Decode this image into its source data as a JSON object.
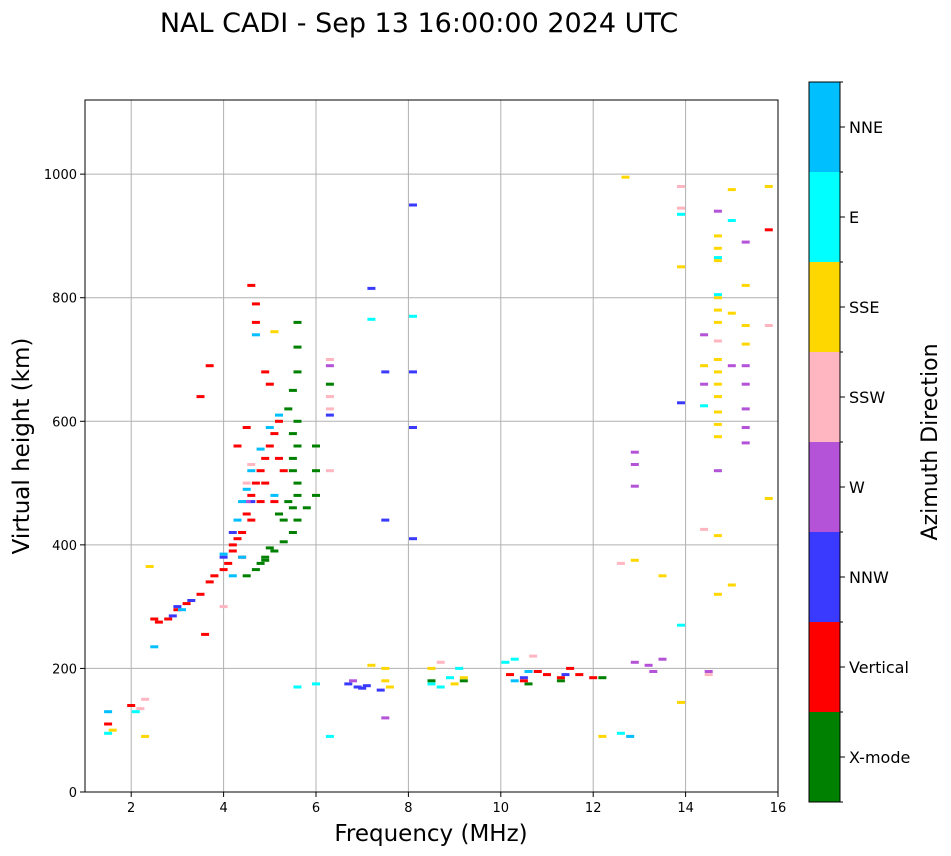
{
  "chart_data": {
    "type": "scatter",
    "title": "NAL CADI - Sep 13 16:00:00 2024 UTC",
    "xlabel": "Frequency (MHz)",
    "ylabel": "Virtual height (km)",
    "xlim": [
      1,
      16
    ],
    "ylim": [
      0,
      1120
    ],
    "xticks": [
      "2",
      "4",
      "6",
      "8",
      "10",
      "12",
      "14",
      "16"
    ],
    "yticks": [
      "0",
      "200",
      "400",
      "600",
      "800",
      "1000"
    ],
    "grid": true,
    "colorbar": {
      "label": "Azimuth Direction",
      "categories": [
        {
          "name": "X-mode",
          "color": "#008000"
        },
        {
          "name": "Vertical",
          "color": "#ff0000"
        },
        {
          "name": "NNW",
          "color": "#3a3aff"
        },
        {
          "name": "W",
          "color": "#b452d8"
        },
        {
          "name": "SSW",
          "color": "#ffb6c1"
        },
        {
          "name": "SSE",
          "color": "#ffd700"
        },
        {
          "name": "E",
          "color": "#00ffff"
        },
        {
          "name": "NNE",
          "color": "#00bfff"
        }
      ]
    },
    "series": [
      {
        "name": "X-mode",
        "points": [
          [
            4.7,
            360
          ],
          [
            4.9,
            375
          ],
          [
            5.1,
            390
          ],
          [
            5.3,
            405
          ],
          [
            5.5,
            420
          ],
          [
            5.6,
            440
          ],
          [
            5.5,
            460
          ],
          [
            5.6,
            480
          ],
          [
            5.6,
            500
          ],
          [
            5.5,
            520
          ],
          [
            5.5,
            540
          ],
          [
            5.6,
            560
          ],
          [
            5.5,
            580
          ],
          [
            5.6,
            600
          ],
          [
            5.5,
            650
          ],
          [
            5.6,
            680
          ],
          [
            5.6,
            720
          ],
          [
            5.6,
            760
          ],
          [
            5.4,
            470
          ],
          [
            5.2,
            450
          ],
          [
            4.9,
            380
          ],
          [
            4.5,
            350
          ],
          [
            6.0,
            560
          ],
          [
            6.0,
            520
          ],
          [
            6.0,
            480
          ],
          [
            5.8,
            460
          ],
          [
            6.3,
            660
          ],
          [
            5.4,
            620
          ],
          [
            5.3,
            440
          ],
          [
            5.0,
            395
          ],
          [
            4.8,
            370
          ],
          [
            8.5,
            180
          ],
          [
            9.2,
            180
          ],
          [
            10.6,
            175
          ],
          [
            11.3,
            180
          ],
          [
            12.2,
            185
          ]
        ]
      },
      {
        "name": "Vertical",
        "points": [
          [
            1.5,
            110
          ],
          [
            2.0,
            140
          ],
          [
            2.5,
            280
          ],
          [
            2.6,
            275
          ],
          [
            2.8,
            280
          ],
          [
            3.0,
            295
          ],
          [
            3.2,
            305
          ],
          [
            3.5,
            320
          ],
          [
            3.7,
            340
          ],
          [
            3.8,
            350
          ],
          [
            4.0,
            360
          ],
          [
            4.1,
            370
          ],
          [
            4.2,
            390
          ],
          [
            4.3,
            410
          ],
          [
            4.4,
            420
          ],
          [
            4.5,
            450
          ],
          [
            4.6,
            480
          ],
          [
            4.7,
            500
          ],
          [
            4.8,
            520
          ],
          [
            4.9,
            540
          ],
          [
            5.0,
            560
          ],
          [
            5.1,
            580
          ],
          [
            5.2,
            600
          ],
          [
            4.7,
            790
          ],
          [
            4.7,
            760
          ],
          [
            4.6,
            820
          ],
          [
            4.9,
            680
          ],
          [
            5.0,
            660
          ],
          [
            3.7,
            690
          ],
          [
            3.5,
            640
          ],
          [
            4.5,
            590
          ],
          [
            4.3,
            560
          ],
          [
            4.8,
            470
          ],
          [
            5.1,
            470
          ],
          [
            5.3,
            520
          ],
          [
            4.4,
            380
          ],
          [
            4.2,
            400
          ],
          [
            10.2,
            190
          ],
          [
            10.5,
            180
          ],
          [
            10.8,
            195
          ],
          [
            11.0,
            190
          ],
          [
            11.3,
            185
          ],
          [
            11.5,
            200
          ],
          [
            11.7,
            190
          ],
          [
            12.0,
            185
          ],
          [
            15.8,
            910
          ],
          [
            3.6,
            255
          ],
          [
            4.6,
            440
          ],
          [
            4.9,
            500
          ],
          [
            5.2,
            540
          ]
        ]
      },
      {
        "name": "NNW",
        "points": [
          [
            2.9,
            285
          ],
          [
            3.0,
            300
          ],
          [
            3.3,
            310
          ],
          [
            4.0,
            380
          ],
          [
            4.2,
            420
          ],
          [
            4.6,
            470
          ],
          [
            6.7,
            175
          ],
          [
            6.9,
            170
          ],
          [
            7.0,
            168
          ],
          [
            7.1,
            172
          ],
          [
            7.4,
            165
          ],
          [
            7.5,
            680
          ],
          [
            8.1,
            950
          ],
          [
            8.1,
            680
          ],
          [
            8.1,
            590
          ],
          [
            8.1,
            410
          ],
          [
            7.5,
            440
          ],
          [
            7.2,
            815
          ],
          [
            6.3,
            610
          ],
          [
            13.9,
            630
          ],
          [
            10.5,
            185
          ],
          [
            11.4,
            190
          ]
        ]
      },
      {
        "name": "W",
        "points": [
          [
            6.8,
            180
          ],
          [
            12.9,
            210
          ],
          [
            13.2,
            205
          ],
          [
            13.5,
            215
          ],
          [
            12.9,
            550
          ],
          [
            12.9,
            530
          ],
          [
            12.9,
            495
          ],
          [
            14.4,
            740
          ],
          [
            14.4,
            660
          ],
          [
            14.7,
            940
          ],
          [
            14.7,
            520
          ],
          [
            15.3,
            890
          ],
          [
            15.3,
            690
          ],
          [
            15.3,
            660
          ],
          [
            15.3,
            620
          ],
          [
            15.3,
            590
          ],
          [
            15.3,
            565
          ],
          [
            14.5,
            195
          ],
          [
            15.0,
            690
          ],
          [
            7.5,
            120
          ],
          [
            6.3,
            690
          ],
          [
            4.5,
            470
          ],
          [
            13.3,
            195
          ]
        ]
      },
      {
        "name": "SSW",
        "points": [
          [
            2.2,
            135
          ],
          [
            2.3,
            150
          ],
          [
            4.5,
            500
          ],
          [
            4.6,
            530
          ],
          [
            6.3,
            520
          ],
          [
            6.3,
            640
          ],
          [
            6.3,
            620
          ],
          [
            6.3,
            700
          ],
          [
            8.7,
            210
          ],
          [
            10.7,
            220
          ],
          [
            12.6,
            370
          ],
          [
            13.9,
            980
          ],
          [
            13.9,
            945
          ],
          [
            14.4,
            425
          ],
          [
            14.7,
            730
          ],
          [
            15.8,
            755
          ],
          [
            14.5,
            190
          ],
          [
            4.0,
            300
          ]
        ]
      },
      {
        "name": "SSE",
        "points": [
          [
            1.6,
            100
          ],
          [
            2.3,
            90
          ],
          [
            2.4,
            365
          ],
          [
            7.5,
            180
          ],
          [
            7.6,
            170
          ],
          [
            7.2,
            205
          ],
          [
            7.5,
            200
          ],
          [
            8.5,
            200
          ],
          [
            9.0,
            175
          ],
          [
            9.2,
            185
          ],
          [
            12.2,
            90
          ],
          [
            12.7,
            995
          ],
          [
            12.9,
            375
          ],
          [
            13.5,
            350
          ],
          [
            13.9,
            850
          ],
          [
            13.9,
            145
          ],
          [
            14.7,
            900
          ],
          [
            14.7,
            880
          ],
          [
            14.7,
            860
          ],
          [
            14.7,
            800
          ],
          [
            14.7,
            780
          ],
          [
            14.7,
            760
          ],
          [
            14.7,
            700
          ],
          [
            14.7,
            680
          ],
          [
            14.7,
            660
          ],
          [
            14.7,
            640
          ],
          [
            14.7,
            615
          ],
          [
            14.7,
            595
          ],
          [
            14.7,
            575
          ],
          [
            14.7,
            415
          ],
          [
            14.7,
            320
          ],
          [
            15.0,
            775
          ],
          [
            15.0,
            975
          ],
          [
            15.3,
            820
          ],
          [
            15.3,
            755
          ],
          [
            15.3,
            725
          ],
          [
            15.0,
            335
          ],
          [
            15.8,
            980
          ],
          [
            15.8,
            475
          ],
          [
            14.4,
            690
          ],
          [
            5.1,
            745
          ]
        ]
      },
      {
        "name": "E",
        "points": [
          [
            1.5,
            95
          ],
          [
            2.1,
            130
          ],
          [
            6.3,
            90
          ],
          [
            5.6,
            170
          ],
          [
            7.2,
            765
          ],
          [
            8.5,
            175
          ],
          [
            8.7,
            170
          ],
          [
            8.9,
            185
          ],
          [
            9.1,
            200
          ],
          [
            10.1,
            210
          ],
          [
            10.3,
            215
          ],
          [
            12.6,
            95
          ],
          [
            13.9,
            270
          ],
          [
            13.9,
            935
          ],
          [
            14.4,
            625
          ],
          [
            14.7,
            865
          ],
          [
            14.7,
            805
          ],
          [
            15.0,
            925
          ],
          [
            8.1,
            770
          ],
          [
            6.0,
            175
          ]
        ]
      },
      {
        "name": "NNE",
        "points": [
          [
            1.5,
            130
          ],
          [
            2.5,
            235
          ],
          [
            3.1,
            295
          ],
          [
            4.0,
            385
          ],
          [
            4.3,
            440
          ],
          [
            4.4,
            470
          ],
          [
            4.5,
            490
          ],
          [
            4.6,
            520
          ],
          [
            4.8,
            555
          ],
          [
            5.0,
            590
          ],
          [
            5.2,
            610
          ],
          [
            4.7,
            740
          ],
          [
            10.3,
            180
          ],
          [
            10.6,
            195
          ],
          [
            12.8,
            90
          ],
          [
            4.4,
            380
          ],
          [
            4.2,
            350
          ],
          [
            5.1,
            480
          ]
        ]
      }
    ]
  }
}
